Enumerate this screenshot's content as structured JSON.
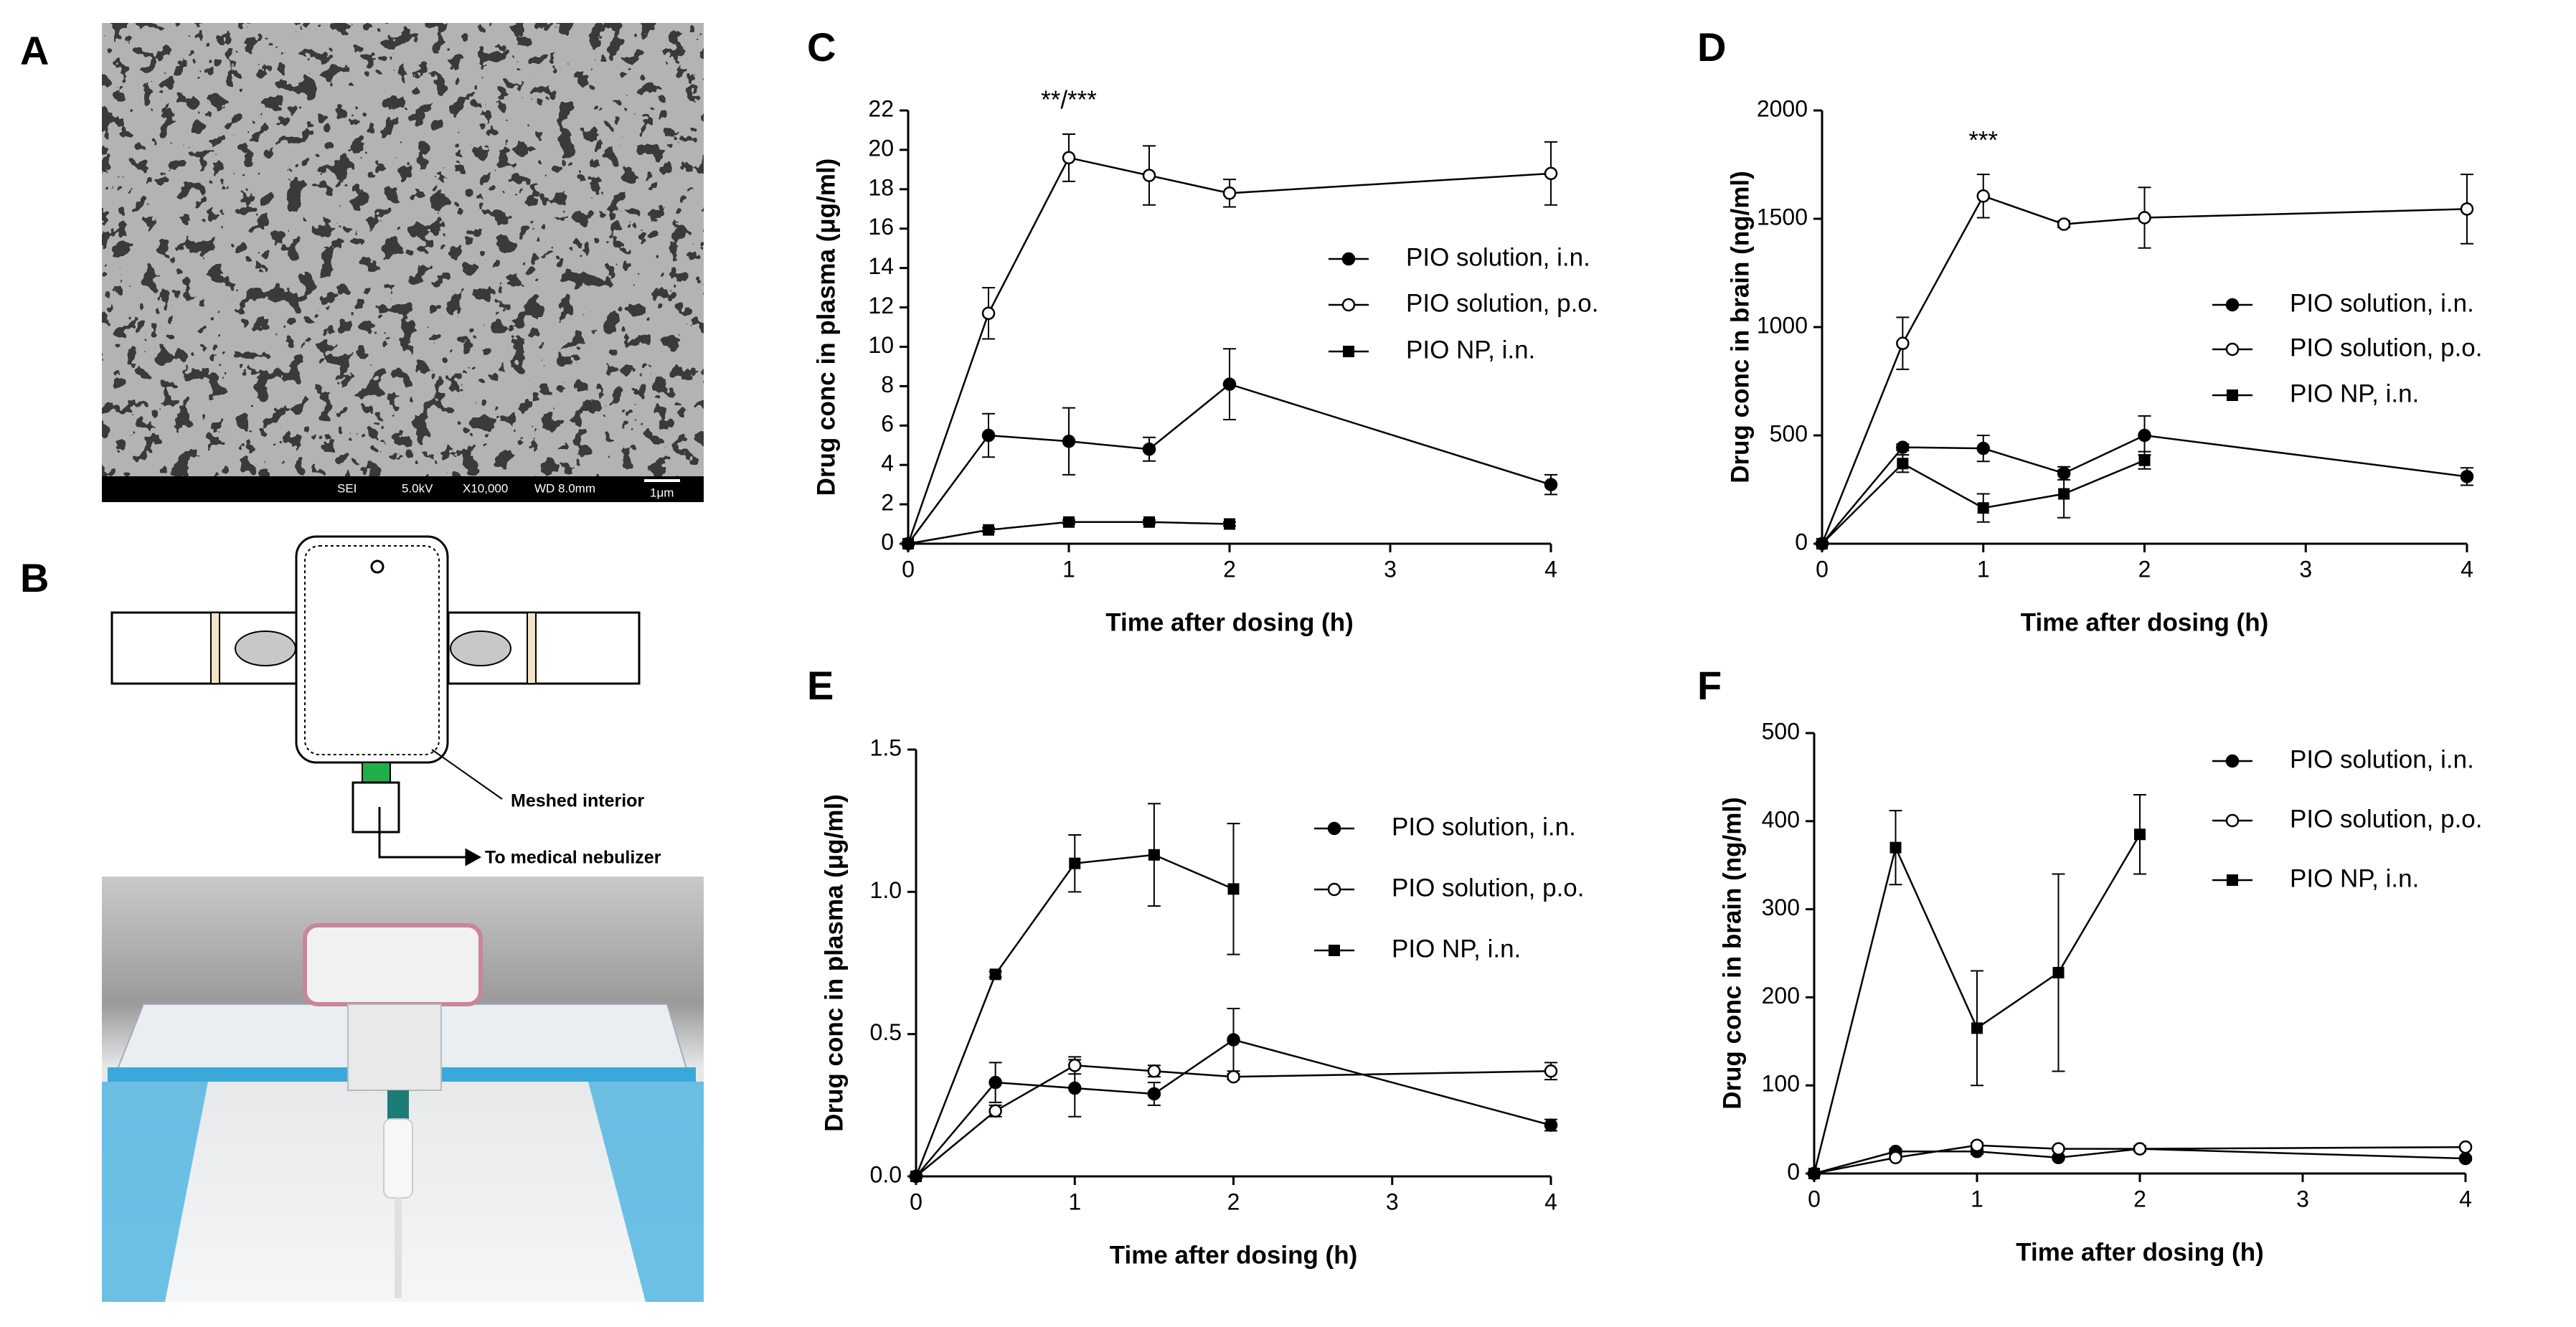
{
  "panels": {
    "A": {
      "letter": "A",
      "scale_bar": [
        "SEI",
        "5.0kV",
        "X10,000",
        "WD 8.0mm",
        "1μm"
      ]
    },
    "B": {
      "letter": "B",
      "labels": [
        "Meshed interior",
        "To medical nebulizer"
      ]
    }
  },
  "chart_data": [
    {
      "panel": "C",
      "type": "line",
      "xlabel": "Time after dosing (h)",
      "ylabel": "Drug conc in plasma (μg/ml)",
      "annotation": "**/***",
      "legend": "right",
      "x": [
        0,
        0.5,
        1,
        1.5,
        2,
        4
      ],
      "xlim": [
        0,
        4
      ],
      "xticks": [
        0,
        1,
        2,
        3,
        4
      ],
      "ylim": [
        0,
        22
      ],
      "yticks": [
        0,
        2,
        4,
        6,
        8,
        10,
        12,
        14,
        16,
        18,
        20,
        22
      ],
      "series": [
        {
          "name": "PIO solution, i.n.",
          "color": "#000000",
          "marker": "circle-filled",
          "values": [
            0,
            5.5,
            5.2,
            4.8,
            8.1,
            3.0
          ],
          "errors": [
            0,
            1.1,
            1.7,
            0.6,
            1.8,
            0.5
          ]
        },
        {
          "name": "PIO solution, p.o.",
          "color": "#000000",
          "marker": "circle-open",
          "values": [
            0,
            11.7,
            19.6,
            18.7,
            17.8,
            18.8
          ],
          "errors": [
            0,
            1.3,
            1.2,
            1.5,
            0.7,
            1.6
          ]
        },
        {
          "name": "PIO NP, i.n.",
          "color": "#000000",
          "marker": "square",
          "values": [
            0,
            0.7,
            1.1,
            1.1,
            1.0,
            null
          ],
          "errors": [
            0,
            0.1,
            0.1,
            0.1,
            0.1,
            null
          ]
        }
      ]
    },
    {
      "panel": "D",
      "type": "line",
      "xlabel": "Time after dosing (h)",
      "ylabel": "Drug conc in brain (ng/ml)",
      "annotation": "***",
      "legend": "right",
      "x": [
        0,
        0.5,
        1,
        1.5,
        2,
        4
      ],
      "xlim": [
        0,
        4
      ],
      "xticks": [
        0,
        1,
        2,
        3,
        4
      ],
      "ylim": [
        0,
        2000
      ],
      "yticks": [
        0,
        500,
        1000,
        1500,
        2000
      ],
      "series": [
        {
          "name": "PIO solution, i.n.",
          "color": "#000000",
          "marker": "circle-filled",
          "values": [
            0,
            445,
            440,
            325,
            500,
            310
          ],
          "errors": [
            0,
            15,
            60,
            30,
            90,
            40
          ]
        },
        {
          "name": "PIO solution, p.o.",
          "color": "#000000",
          "marker": "circle-open",
          "values": [
            0,
            925,
            1605,
            1475,
            1505,
            1545
          ],
          "errors": [
            0,
            120,
            100,
            15,
            140,
            160
          ]
        },
        {
          "name": "PIO NP, i.n.",
          "color": "#000000",
          "marker": "square",
          "values": [
            0,
            370,
            165,
            230,
            385,
            null
          ],
          "errors": [
            0,
            40,
            65,
            110,
            40,
            null
          ]
        }
      ]
    },
    {
      "panel": "E",
      "type": "line",
      "xlabel": "Time after dosing (h)",
      "ylabel": "Drug conc in plasma (μg/ml)",
      "legend": "right",
      "x": [
        0,
        0.5,
        1,
        1.5,
        2,
        4
      ],
      "xlim": [
        0,
        4
      ],
      "xticks": [
        0,
        1,
        2,
        3,
        4
      ],
      "ylim": [
        0,
        1.5
      ],
      "yticks": [
        {
          "value": 0,
          "label": "0.0"
        },
        0.5,
        {
          "value": 1,
          "label": "1.0"
        },
        1.5
      ],
      "series": [
        {
          "name": "PIO solution, i.n.",
          "color": "#000000",
          "marker": "circle-filled",
          "values": [
            0,
            0.33,
            0.31,
            0.29,
            0.48,
            0.18
          ],
          "errors": [
            0,
            0.07,
            0.1,
            0.04,
            0.11,
            0.02
          ]
        },
        {
          "name": "PIO solution, p.o.",
          "color": "#000000",
          "marker": "circle-open",
          "values": [
            0,
            0.23,
            0.39,
            0.37,
            0.35,
            0.37
          ],
          "errors": [
            0,
            0.02,
            0.03,
            0.02,
            0.01,
            0.03
          ]
        },
        {
          "name": "PIO NP, i.n.",
          "color": "#000000",
          "marker": "square",
          "values": [
            0,
            0.71,
            1.1,
            1.13,
            1.01,
            null
          ],
          "errors": [
            0,
            0.01,
            0.1,
            0.18,
            0.23,
            null
          ]
        }
      ]
    },
    {
      "panel": "F",
      "type": "line",
      "xlabel": "Time after dosing (h)",
      "ylabel": "Drug conc in brain (ng/ml)",
      "legend": "right",
      "x": [
        0,
        0.5,
        1,
        1.5,
        2,
        4
      ],
      "xlim": [
        0,
        4
      ],
      "xticks": [
        0,
        1,
        2,
        3,
        4
      ],
      "ylim": [
        0,
        500
      ],
      "yticks": [
        0,
        100,
        200,
        300,
        400,
        500
      ],
      "series": [
        {
          "name": "PIO solution, i.n.",
          "color": "#000000",
          "marker": "circle-filled",
          "values": [
            0,
            25,
            25,
            18,
            28,
            17
          ],
          "errors": [
            0,
            3,
            3,
            2,
            3,
            2
          ]
        },
        {
          "name": "PIO solution, p.o.",
          "color": "#000000",
          "marker": "circle-open",
          "values": [
            0,
            18,
            32,
            28,
            28,
            30
          ],
          "errors": [
            0,
            2,
            3,
            2,
            2,
            2
          ]
        },
        {
          "name": "PIO NP, i.n.",
          "color": "#000000",
          "marker": "square",
          "values": [
            0,
            370,
            165,
            228,
            385,
            null
          ],
          "errors": [
            0,
            42,
            65,
            112,
            45,
            null
          ]
        }
      ]
    }
  ]
}
